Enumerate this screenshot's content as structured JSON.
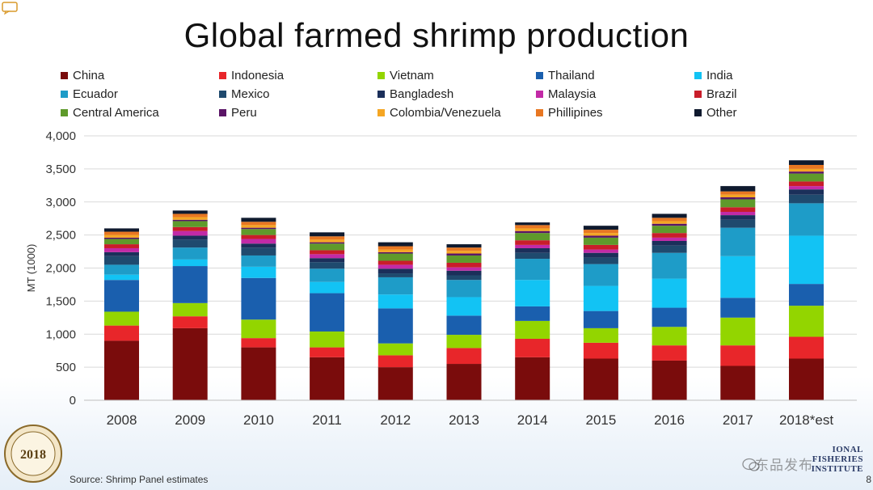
{
  "page": {
    "title": "Global farmed shrimp production",
    "source": "Source: Shrimp Panel estimates",
    "page_number": "8",
    "seal_text": "2018",
    "nfi_logo_text": [
      "IONAL",
      "FISHERIES",
      "INSTITUTE"
    ],
    "watermark_text": "东品发布"
  },
  "chart_data": {
    "type": "bar",
    "stacked": true,
    "title": "Global farmed shrimp production",
    "ylabel": "MT (1000)",
    "xlabel": "",
    "ylim": [
      0,
      4000
    ],
    "yticks": [
      "0",
      "500",
      "1,000",
      "1,500",
      "2,000",
      "2,500",
      "3,000",
      "3,500",
      "4,000"
    ],
    "ytick_values": [
      0,
      500,
      1000,
      1500,
      2000,
      2500,
      3000,
      3500,
      4000
    ],
    "grid": true,
    "legend_position": "top",
    "categories": [
      "2008",
      "2009",
      "2010",
      "2011",
      "2012",
      "2013",
      "2014",
      "2015",
      "2016",
      "2017",
      "2018*est"
    ],
    "series": [
      {
        "name": "China",
        "color": "#7a0c0c",
        "values": [
          900,
          1090,
          800,
          650,
          500,
          550,
          650,
          630,
          600,
          520,
          630
        ]
      },
      {
        "name": "Indonesia",
        "color": "#e8262a",
        "values": [
          230,
          180,
          140,
          150,
          180,
          240,
          280,
          240,
          230,
          310,
          330
        ]
      },
      {
        "name": "Vietnam",
        "color": "#93d500",
        "values": [
          210,
          200,
          280,
          240,
          180,
          200,
          270,
          220,
          280,
          420,
          470
        ]
      },
      {
        "name": "Thailand",
        "color": "#1a5fae",
        "values": [
          480,
          560,
          630,
          580,
          530,
          290,
          220,
          260,
          290,
          300,
          330
        ]
      },
      {
        "name": "India",
        "color": "#12c3f4",
        "values": [
          80,
          100,
          170,
          170,
          210,
          280,
          400,
          380,
          440,
          630,
          730
        ]
      },
      {
        "name": "Ecuador",
        "color": "#1e9cc8",
        "values": [
          150,
          180,
          170,
          200,
          260,
          260,
          320,
          330,
          390,
          430,
          490
        ]
      },
      {
        "name": "Mexico",
        "color": "#1f4a6e",
        "values": [
          130,
          120,
          120,
          100,
          60,
          70,
          90,
          100,
          110,
          120,
          130
        ]
      },
      {
        "name": "Bangladesh",
        "color": "#1b2f5a",
        "values": [
          60,
          60,
          60,
          60,
          70,
          70,
          70,
          70,
          70,
          70,
          80
        ]
      },
      {
        "name": "Malaysia",
        "color": "#c22aa6",
        "values": [
          60,
          70,
          70,
          60,
          60,
          50,
          50,
          50,
          50,
          50,
          50
        ]
      },
      {
        "name": "Brazil",
        "color": "#c91d2a",
        "values": [
          60,
          60,
          60,
          60,
          60,
          70,
          70,
          70,
          70,
          70,
          70
        ]
      },
      {
        "name": "Central America",
        "color": "#5f9a2b",
        "values": [
          80,
          90,
          90,
          100,
          110,
          110,
          110,
          110,
          110,
          120,
          120
        ]
      },
      {
        "name": "Peru",
        "color": "#5a1466",
        "values": [
          20,
          20,
          20,
          20,
          20,
          30,
          30,
          30,
          30,
          30,
          30
        ]
      },
      {
        "name": "Colombia/Venezuela",
        "color": "#f5a623",
        "values": [
          40,
          40,
          40,
          40,
          40,
          40,
          40,
          40,
          40,
          40,
          40
        ]
      },
      {
        "name": "Phillipines",
        "color": "#e87722",
        "values": [
          50,
          50,
          50,
          50,
          50,
          50,
          50,
          50,
          50,
          50,
          60
        ]
      },
      {
        "name": "Other",
        "color": "#0f1a2e",
        "values": [
          50,
          50,
          60,
          60,
          60,
          50,
          40,
          60,
          60,
          80,
          70
        ]
      }
    ]
  }
}
